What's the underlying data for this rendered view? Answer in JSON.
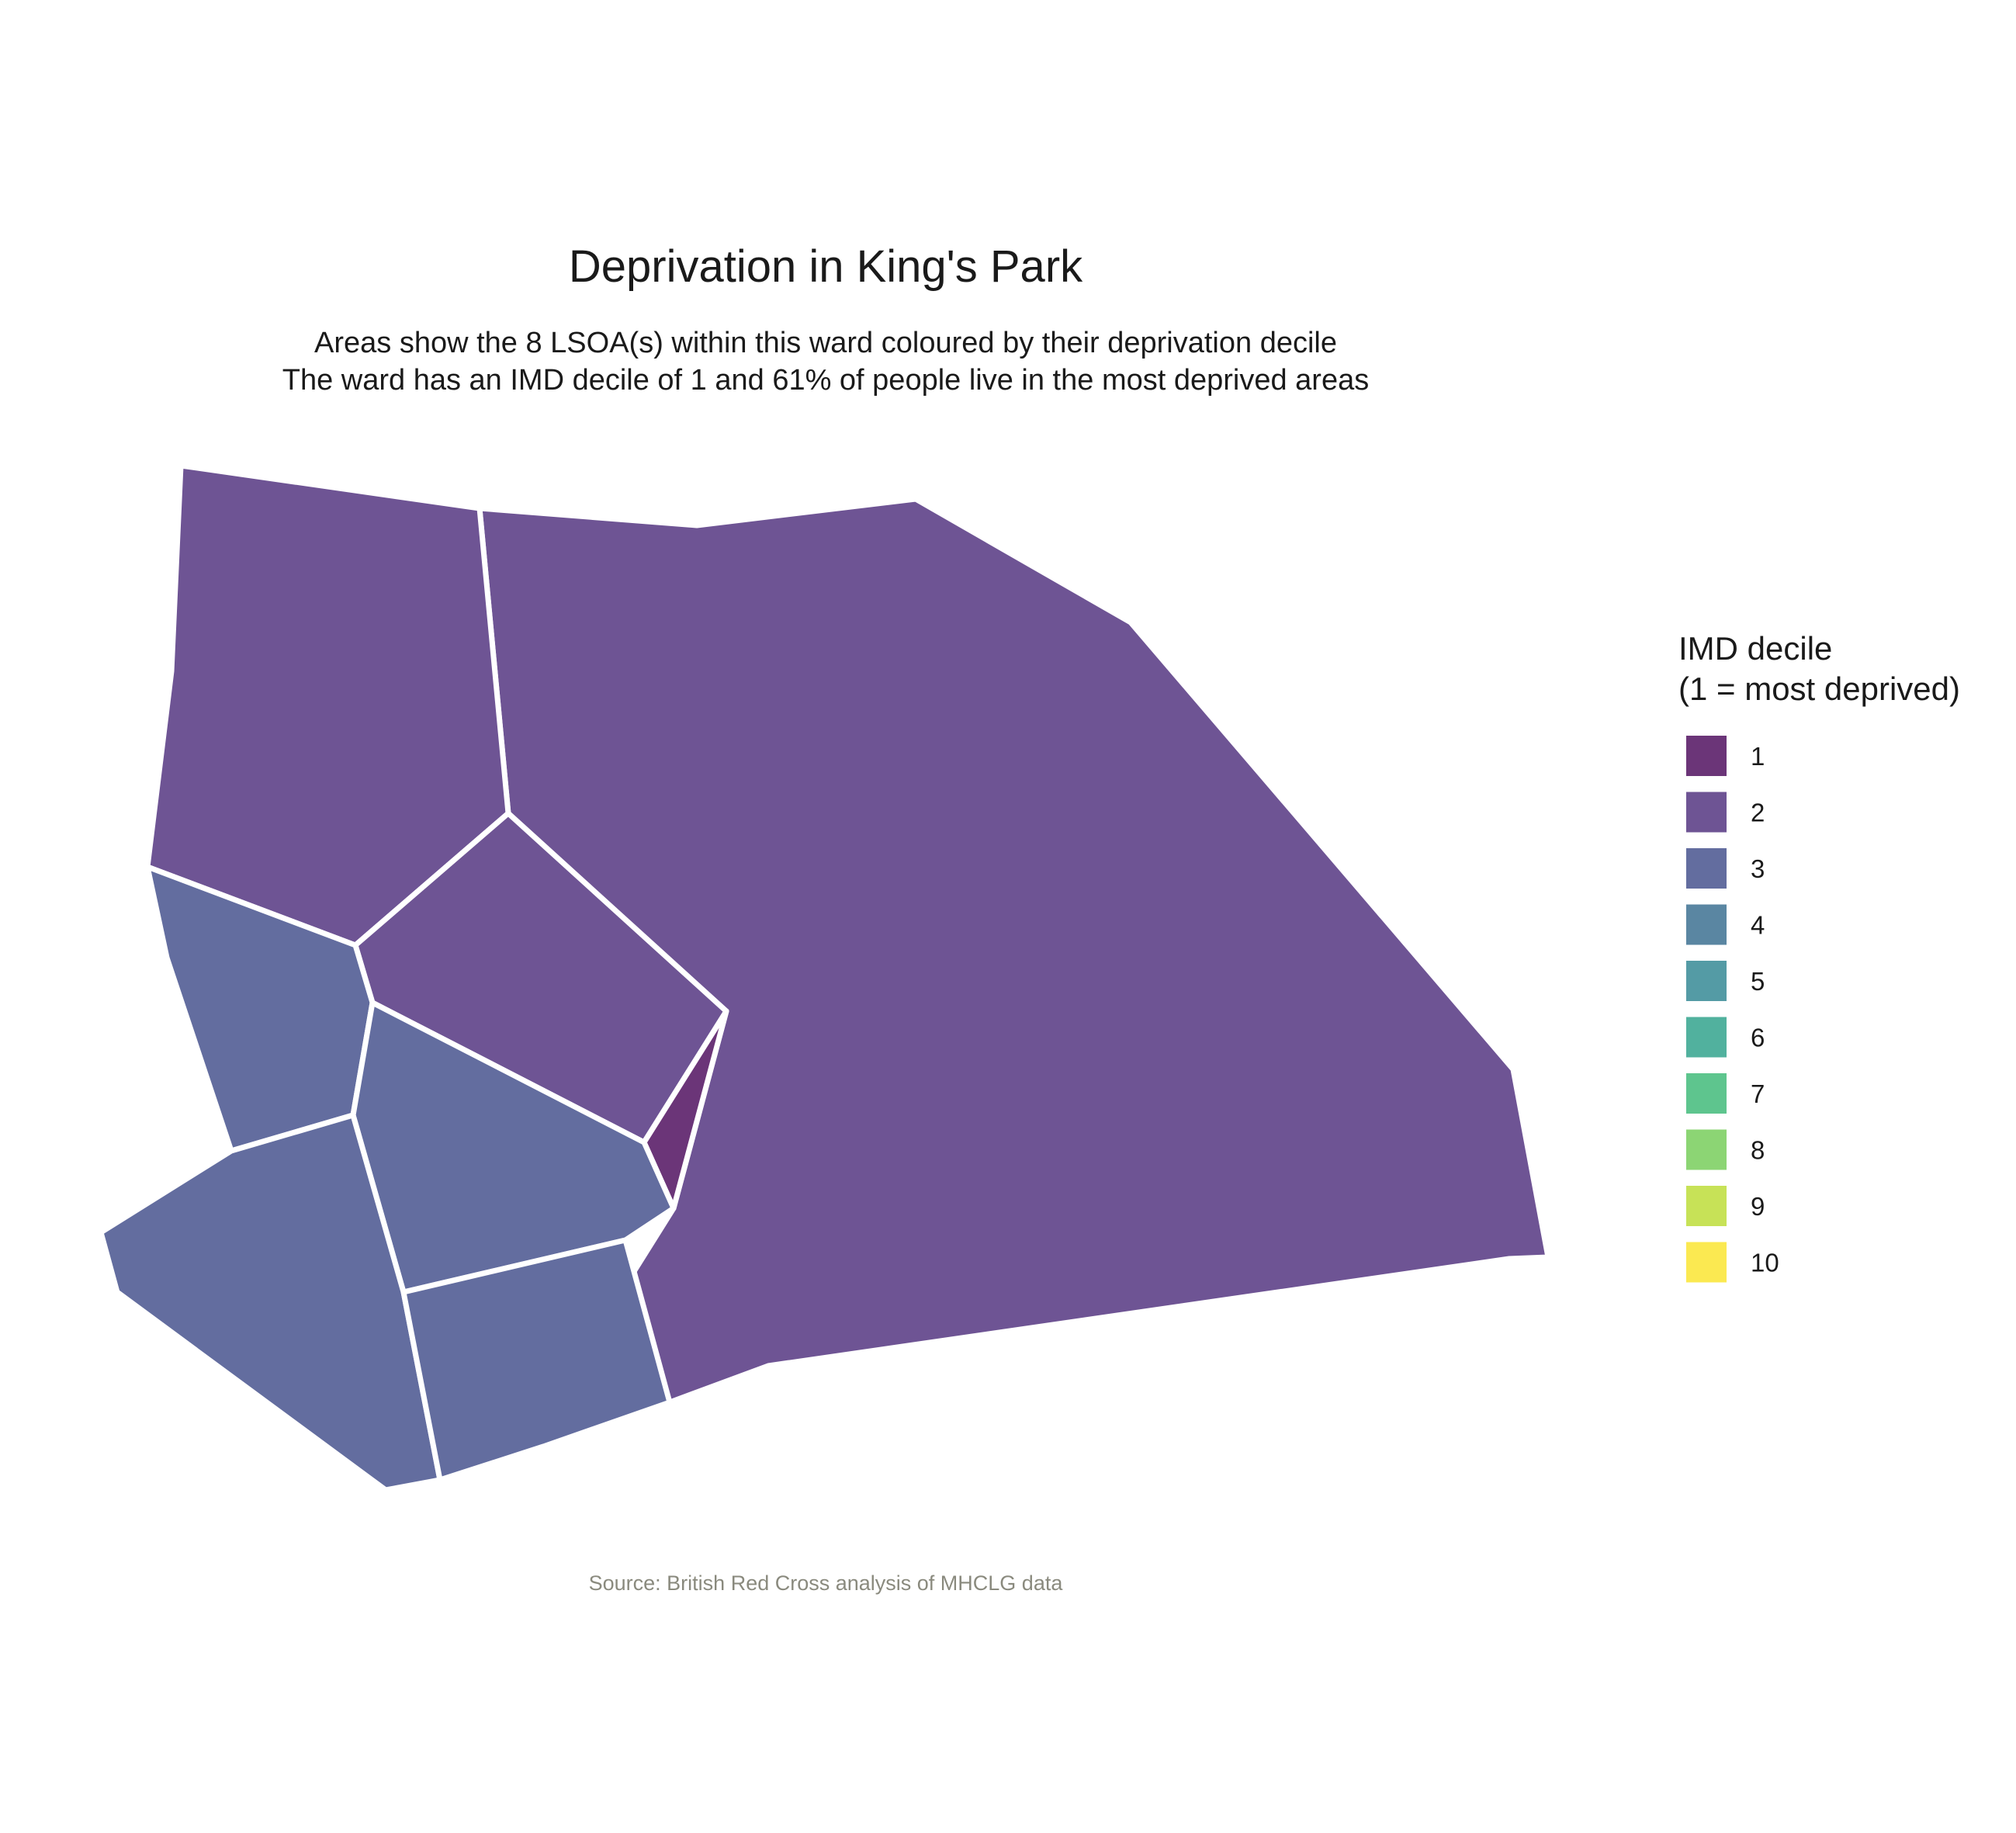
{
  "title": "Deprivation in King's Park",
  "subtitle_line1": "Areas show the 8 LSOA(s) within this ward coloured by their deprivation decile",
  "subtitle_line2": "The ward has an IMD decile of 1 and 61% of people live in the most deprived areas",
  "caption": "Source: British Red Cross analysis of MHCLG data",
  "legend": {
    "title_line1": "IMD decile",
    "title_line2": "(1 = most deprived)",
    "items": [
      {
        "label": "1",
        "color": "#6b3578"
      },
      {
        "label": "2",
        "color": "#6e5494"
      },
      {
        "label": "3",
        "color": "#636d9f"
      },
      {
        "label": "4",
        "color": "#5a86a2"
      },
      {
        "label": "5",
        "color": "#549ba5"
      },
      {
        "label": "6",
        "color": "#51b19e"
      },
      {
        "label": "7",
        "color": "#5ec58e"
      },
      {
        "label": "8",
        "color": "#8cd574"
      },
      {
        "label": "9",
        "color": "#c7e257"
      },
      {
        "label": "10",
        "color": "#fbe951"
      }
    ]
  },
  "chart_data": {
    "type": "choropleth",
    "region_count": 8,
    "ward_imd_decile": 1,
    "percent_in_most_deprived": 61,
    "regions": [
      {
        "name": "lsoa-east-large",
        "decile": 2
      },
      {
        "name": "lsoa-northwest",
        "decile": 2
      },
      {
        "name": "lsoa-center",
        "decile": 2
      },
      {
        "name": "lsoa-triangle",
        "decile": 1
      },
      {
        "name": "lsoa-west",
        "decile": 3
      },
      {
        "name": "lsoa-center-south",
        "decile": 3
      },
      {
        "name": "lsoa-southwest",
        "decile": 3
      },
      {
        "name": "lsoa-south",
        "decile": 3
      }
    ]
  }
}
